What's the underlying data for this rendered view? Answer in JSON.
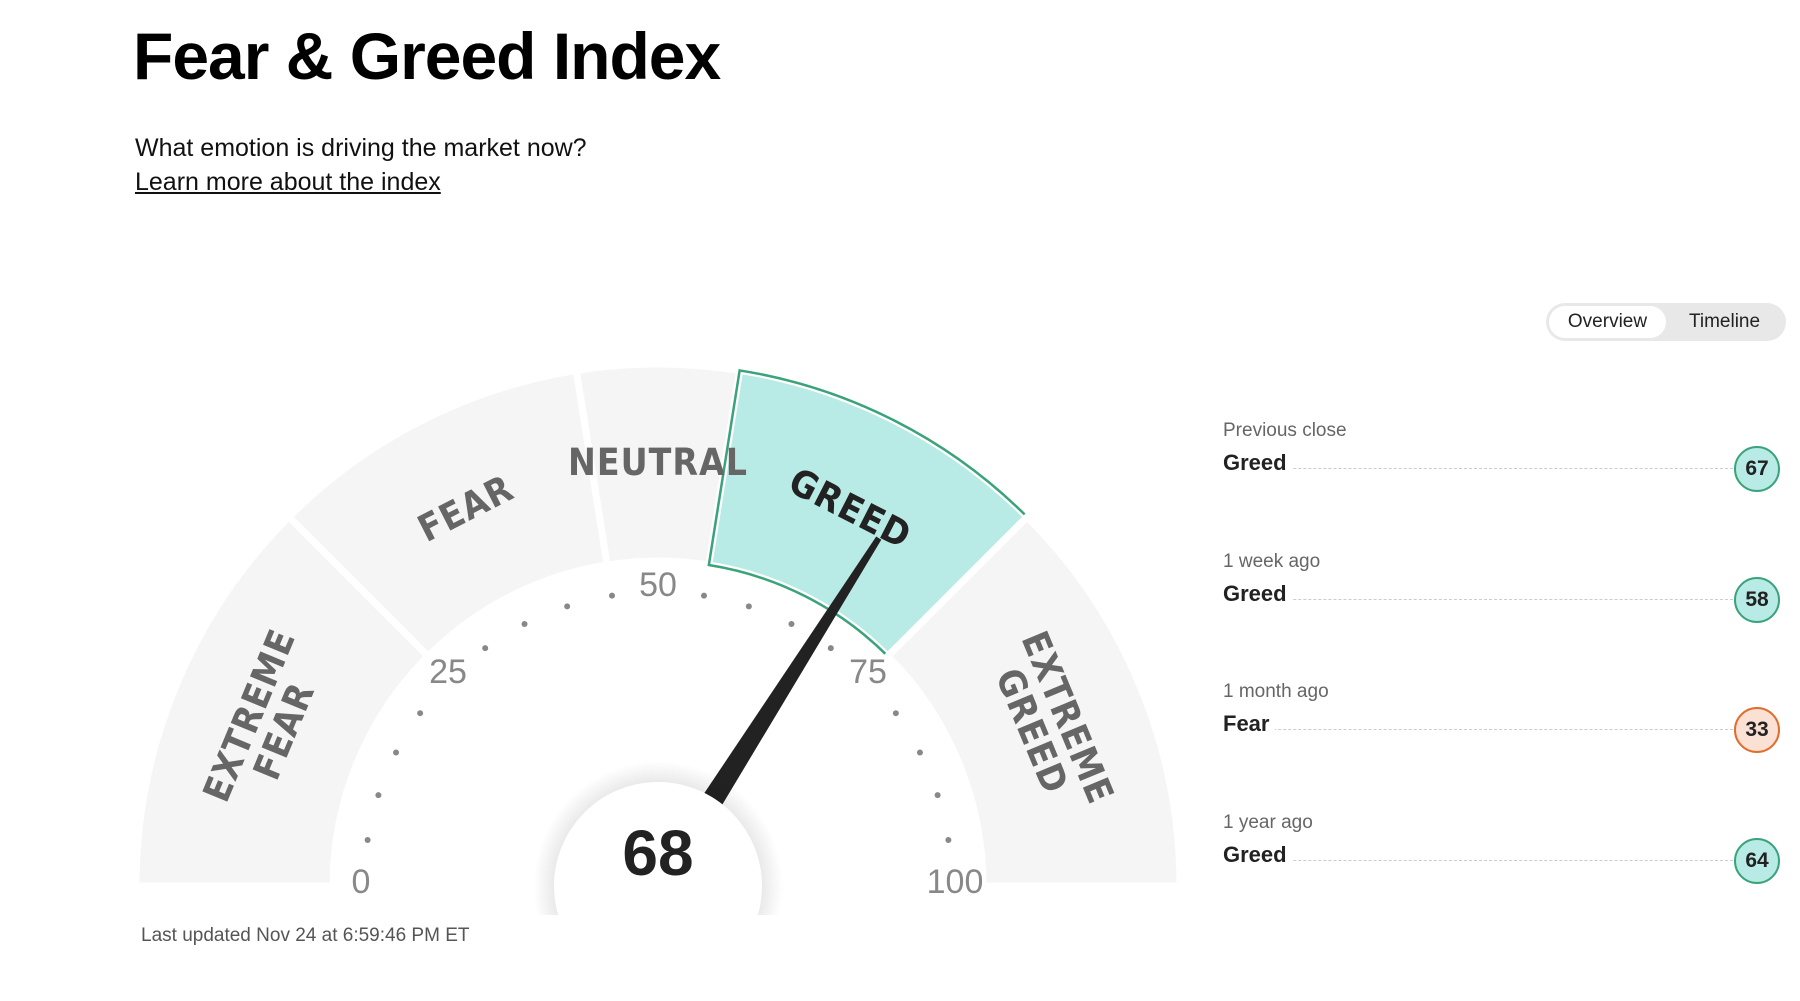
{
  "header": {
    "title": "Fear & Greed Index",
    "subtitle": "What emotion is driving the market now?",
    "link": "Learn more about the index"
  },
  "tabs": [
    "Overview",
    "Timeline"
  ],
  "gauge": {
    "value": 68,
    "range": [
      0,
      100
    ],
    "ticks": [
      0,
      25,
      50,
      75,
      100
    ],
    "segments": [
      {
        "label": "EXTREME FEAR",
        "from": 0,
        "to": 25
      },
      {
        "label": "FEAR",
        "from": 25,
        "to": 45
      },
      {
        "label": "NEUTRAL",
        "from": 45,
        "to": 55
      },
      {
        "label": "GREED",
        "from": 55,
        "to": 75
      },
      {
        "label": "EXTREME GREED",
        "from": 75,
        "to": 100
      }
    ],
    "highlight": {
      "fill": "#b8ebe6",
      "stroke": "#3aa37a"
    },
    "updated": "Last updated Nov 24 at 6:59:46 PM ET"
  },
  "history": [
    {
      "period": "Previous close",
      "rating": "Greed",
      "value": 67
    },
    {
      "period": "1 week ago",
      "rating": "Greed",
      "value": 58
    },
    {
      "period": "1 month ago",
      "rating": "Fear",
      "value": 33
    },
    {
      "period": "1 year ago",
      "rating": "Greed",
      "value": 64
    }
  ],
  "rating_colors": {
    "Greed": {
      "fill": "#b8ebe6",
      "stroke": "#3aa37a"
    },
    "Fear": {
      "fill": "#fbe0d4",
      "stroke": "#e06d2d"
    }
  }
}
